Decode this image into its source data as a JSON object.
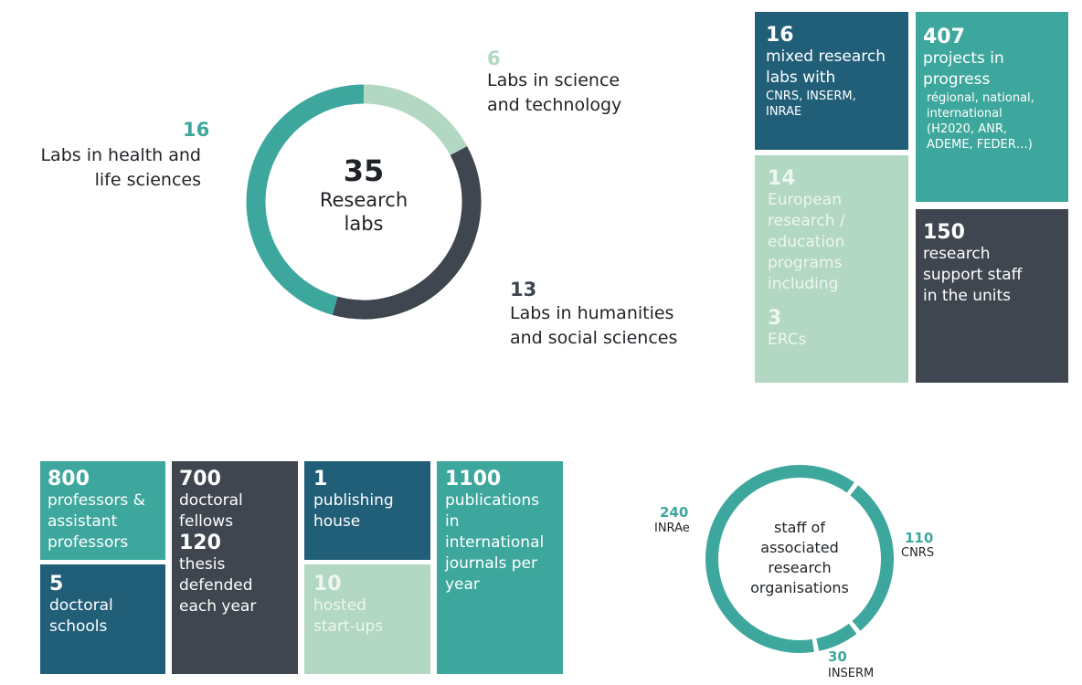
{
  "colors": {
    "blue": "#215e78",
    "teal": "#3ea79d",
    "dark": "#3f464f",
    "pale": "#b2d7c2"
  },
  "chart_data": [
    {
      "type": "pie",
      "variant": "donut",
      "title": "Research labs",
      "center_value": "35",
      "center_label_line1": "Research",
      "center_label_line2": "labs",
      "slices": [
        {
          "value": 6,
          "value_text": "6",
          "label_line1": "Labs in science",
          "label_line2": "and technology",
          "color": "#b2d7c2"
        },
        {
          "value": 13,
          "value_text": "13",
          "label_line1": "Labs in humanities",
          "label_line2": "and social sciences",
          "color": "#3f464f"
        },
        {
          "value": 16,
          "value_text": "16",
          "label_line1": "Labs in health and",
          "label_line2": "life sciences",
          "color": "#3ea79d"
        }
      ]
    },
    {
      "type": "pie",
      "variant": "donut",
      "center_text_lines": [
        "staff of",
        "associated",
        "research",
        "organisations"
      ],
      "slices": [
        {
          "value": 110,
          "value_text": "110",
          "label": "CNRS",
          "color": "#3ea79d"
        },
        {
          "value": 30,
          "value_text": "30",
          "label": "INSERM",
          "color": "#3ea79d"
        },
        {
          "value": 240,
          "value_text": "240",
          "label": "INRAe",
          "color": "#3ea79d"
        }
      ]
    }
  ],
  "tiles_right": {
    "mixed": {
      "num": "16",
      "l1": "mixed research",
      "l2": "labs with",
      "s1": "CNRS, INSERM,",
      "s2": "INRAE"
    },
    "projects": {
      "num": "407",
      "l1": "projects in",
      "l2": "progress",
      "s1": "régional, national,",
      "s2": "international",
      "s3": "(H2020, ANR,",
      "s4": "ADEME, FEDER…)"
    },
    "european": {
      "num": "14",
      "l1": "European",
      "l2": "research /",
      "l3": "education",
      "l4": "programs",
      "l5": "including",
      "num2": "3",
      "l6": "ERCs"
    },
    "support": {
      "num": "150",
      "l1": "research",
      "l2": "support staff",
      "l3": "in the units"
    }
  },
  "tiles_bottom": {
    "professors": {
      "num": "800",
      "l1": "professors &",
      "l2": "assistant",
      "l3": "professors"
    },
    "schools": {
      "num": "5",
      "l1": "doctoral",
      "l2": "schools"
    },
    "fellows": {
      "num": "700",
      "l1": "doctoral",
      "l2": "fellows",
      "num2": "120",
      "l3": "thesis",
      "l4": "defended",
      "l5": "each year"
    },
    "publishing": {
      "num": "1",
      "l1": "publishing",
      "l2": "house"
    },
    "startups": {
      "num": "10",
      "l1": "hosted",
      "l2": "start-ups"
    },
    "publications": {
      "num": "1100",
      "l1": "publications",
      "l2": "in",
      "l3": "international",
      "l4": "journals per",
      "l5": "year"
    }
  }
}
